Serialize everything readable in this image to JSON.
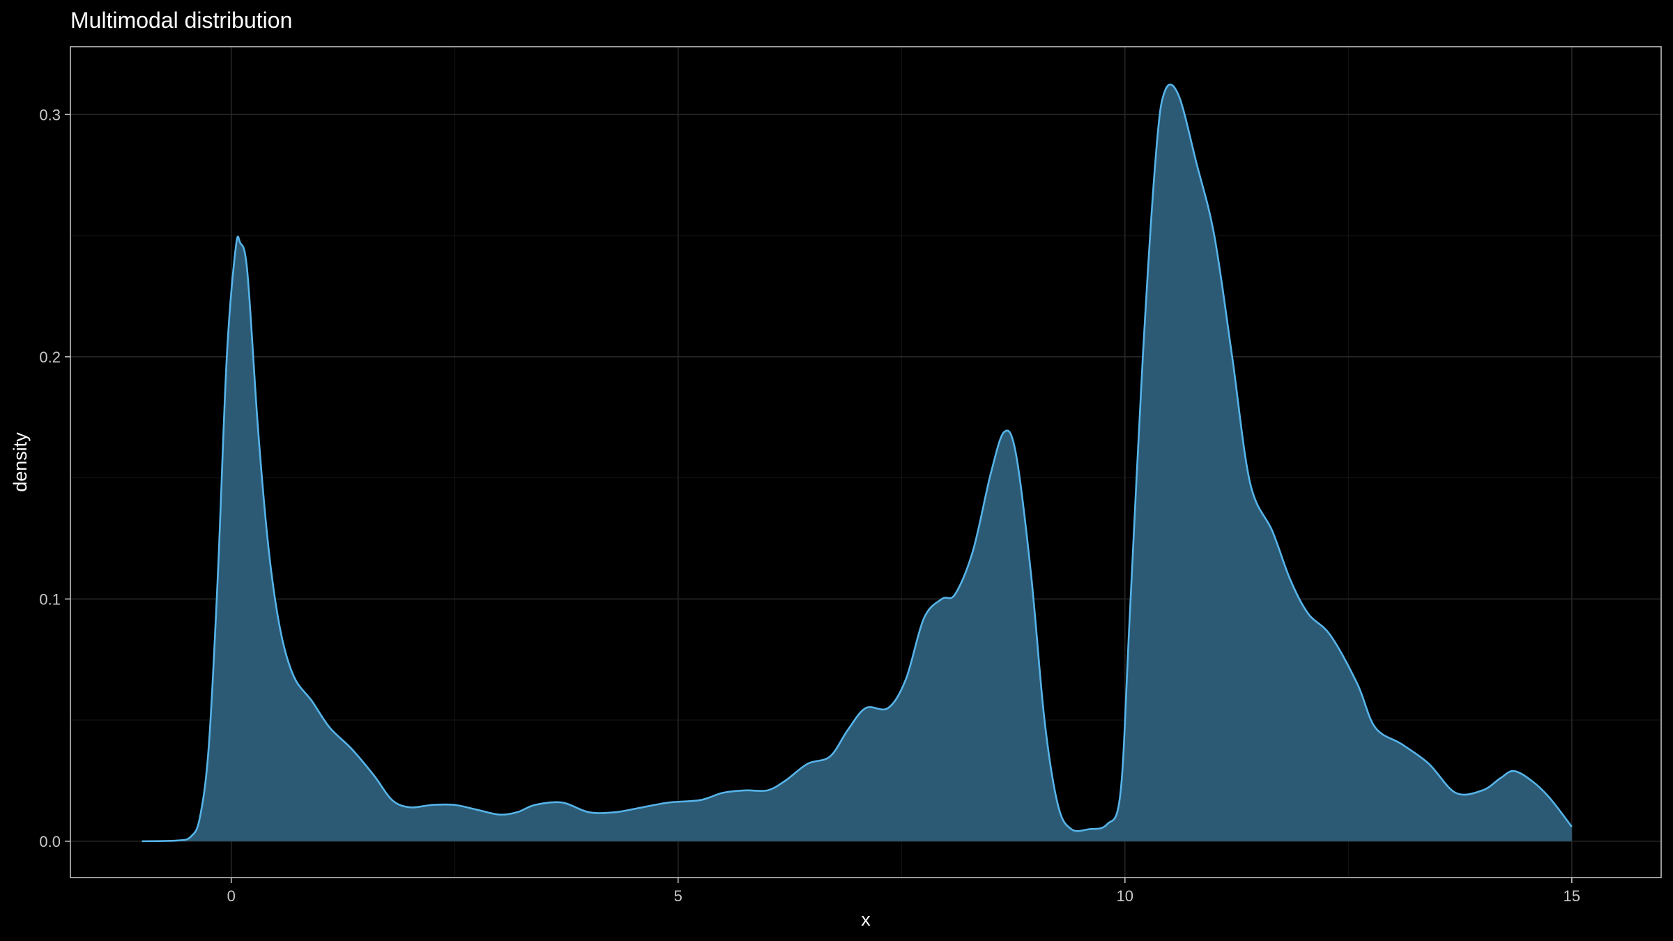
{
  "chart_data": {
    "type": "area",
    "title": "Multimodal distribution",
    "xlabel": "x",
    "ylabel": "density",
    "xlim": [
      -1.8,
      16.0
    ],
    "ylim": [
      -0.015,
      0.328
    ],
    "xticks": [
      0,
      5,
      10,
      15
    ],
    "yticks": [
      0.0,
      0.1,
      0.2,
      0.3
    ],
    "xtick_labels": [
      "0",
      "5",
      "10",
      "15"
    ],
    "ytick_labels": [
      "0.0",
      "0.1",
      "0.2",
      "0.3"
    ],
    "x_minor": [
      2.5,
      7.5,
      12.5
    ],
    "y_minor": [
      0.05,
      0.15,
      0.25
    ],
    "grid": true,
    "legend": "none",
    "colors": {
      "background": "#000000",
      "fill": "#2c5a75",
      "line": "#56b4e9",
      "text": "#ffffff",
      "tick_text": "#c9c9c9"
    },
    "series": [
      {
        "points": [
          [
            -1.0,
            0.0
          ],
          [
            -0.6,
            0.0003
          ],
          [
            -0.45,
            0.002
          ],
          [
            -0.35,
            0.01
          ],
          [
            -0.25,
            0.04
          ],
          [
            -0.15,
            0.11
          ],
          [
            -0.05,
            0.2
          ],
          [
            0.05,
            0.245
          ],
          [
            0.1,
            0.247
          ],
          [
            0.18,
            0.235
          ],
          [
            0.3,
            0.17
          ],
          [
            0.42,
            0.12
          ],
          [
            0.55,
            0.087
          ],
          [
            0.7,
            0.068
          ],
          [
            0.9,
            0.058
          ],
          [
            1.1,
            0.047
          ],
          [
            1.35,
            0.038
          ],
          [
            1.6,
            0.027
          ],
          [
            1.8,
            0.017
          ],
          [
            2.0,
            0.014
          ],
          [
            2.25,
            0.015
          ],
          [
            2.5,
            0.015
          ],
          [
            2.75,
            0.013
          ],
          [
            3.0,
            0.011
          ],
          [
            3.2,
            0.012
          ],
          [
            3.4,
            0.015
          ],
          [
            3.7,
            0.016
          ],
          [
            4.0,
            0.012
          ],
          [
            4.3,
            0.012
          ],
          [
            4.6,
            0.014
          ],
          [
            4.9,
            0.016
          ],
          [
            5.25,
            0.017
          ],
          [
            5.5,
            0.02
          ],
          [
            5.75,
            0.021
          ],
          [
            6.0,
            0.021
          ],
          [
            6.2,
            0.025
          ],
          [
            6.45,
            0.032
          ],
          [
            6.7,
            0.035
          ],
          [
            6.9,
            0.046
          ],
          [
            7.1,
            0.055
          ],
          [
            7.35,
            0.055
          ],
          [
            7.55,
            0.067
          ],
          [
            7.75,
            0.092
          ],
          [
            7.95,
            0.1
          ],
          [
            8.1,
            0.102
          ],
          [
            8.3,
            0.12
          ],
          [
            8.5,
            0.152
          ],
          [
            8.65,
            0.169
          ],
          [
            8.78,
            0.16
          ],
          [
            8.95,
            0.11
          ],
          [
            9.1,
            0.05
          ],
          [
            9.25,
            0.015
          ],
          [
            9.4,
            0.005
          ],
          [
            9.6,
            0.005
          ],
          [
            9.8,
            0.007
          ],
          [
            9.95,
            0.02
          ],
          [
            10.05,
            0.09
          ],
          [
            10.2,
            0.2
          ],
          [
            10.35,
            0.285
          ],
          [
            10.45,
            0.31
          ],
          [
            10.6,
            0.308
          ],
          [
            10.8,
            0.28
          ],
          [
            11.0,
            0.25
          ],
          [
            11.2,
            0.2
          ],
          [
            11.4,
            0.148
          ],
          [
            11.65,
            0.128
          ],
          [
            11.85,
            0.108
          ],
          [
            12.05,
            0.094
          ],
          [
            12.3,
            0.085
          ],
          [
            12.6,
            0.065
          ],
          [
            12.8,
            0.047
          ],
          [
            13.1,
            0.04
          ],
          [
            13.4,
            0.032
          ],
          [
            13.7,
            0.02
          ],
          [
            14.0,
            0.021
          ],
          [
            14.2,
            0.026
          ],
          [
            14.35,
            0.029
          ],
          [
            14.55,
            0.025
          ],
          [
            14.75,
            0.018
          ],
          [
            15.0,
            0.006
          ]
        ]
      }
    ]
  }
}
